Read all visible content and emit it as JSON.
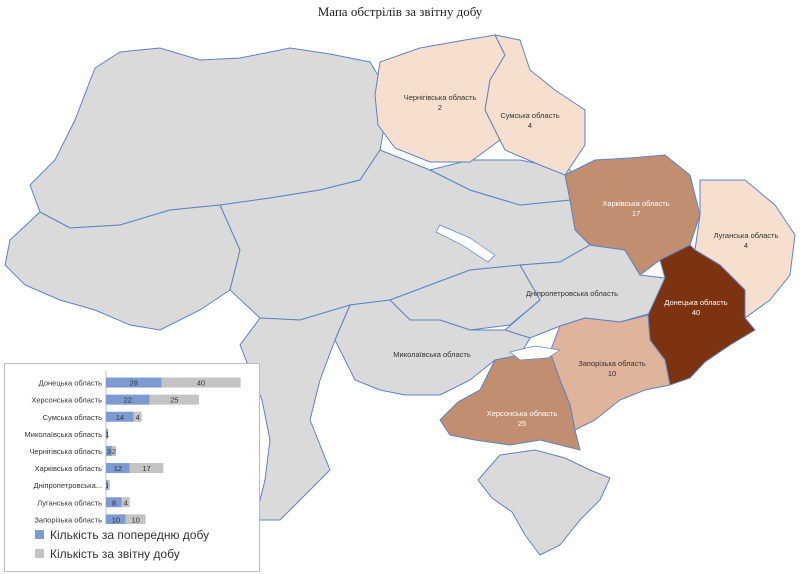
{
  "title": "Мапа обстрілів за звітну добу",
  "colors": {
    "base": "#dadadb",
    "border": "#5b83c6",
    "light": "#f6dfce",
    "medium_light": "#dfb49a",
    "medium": "#c18e70",
    "dark": "#7d330f",
    "prev_series": "#7b9bd1",
    "curr_series": "#c4c4c4"
  },
  "map_labels": {
    "chernihiv": {
      "name": "Чернігівська область",
      "value": "2"
    },
    "sumy": {
      "name": "Сумська область",
      "value": "4"
    },
    "kharkiv": {
      "name": "Харківська область",
      "value": "17"
    },
    "luhansk": {
      "name": "Луганська область",
      "value": "4"
    },
    "donetsk": {
      "name": "Донецька область",
      "value": "40"
    },
    "zaporizhzhia": {
      "name": "Запорізька область",
      "value": "10"
    },
    "kherson": {
      "name": "Херсонська область",
      "value": "25"
    },
    "dnipro": {
      "name": "Дніпропетровська область"
    },
    "mykolaiv": {
      "name": "Миколаївська область"
    }
  },
  "chart_data": {
    "type": "bar",
    "orientation": "horizontal",
    "stacked": true,
    "categories": [
      "Донецька область",
      "Херсонська область",
      "Сумська область",
      "Миколаївська область",
      "Чернігівська область",
      "Харківська область",
      "Дніпропетровська...",
      "Луганська область",
      "Запорізька область"
    ],
    "series": [
      {
        "name": "Кількість за попередню добу",
        "values": [
          28,
          22,
          14,
          1,
          3,
          12,
          1,
          8,
          10
        ],
        "labels": [
          "28",
          "22",
          "14",
          "1",
          "3",
          "12",
          "1",
          "8",
          "10"
        ]
      },
      {
        "name": "Кількість за звітну добу",
        "values": [
          40,
          25,
          4,
          0,
          2,
          17,
          1,
          4,
          10
        ],
        "labels": [
          "40",
          "25",
          "4",
          "",
          "2",
          "17",
          "",
          "4",
          "10"
        ]
      }
    ],
    "legend": "bottom",
    "grid": false
  }
}
